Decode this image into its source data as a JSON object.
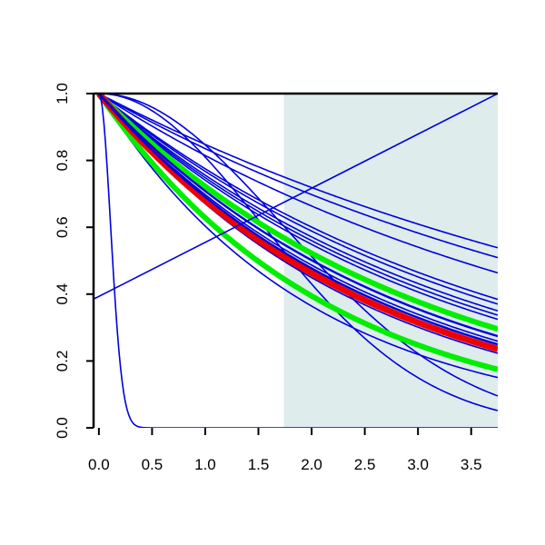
{
  "chart_data": {
    "type": "line",
    "title": "",
    "xlabel": "",
    "ylabel": "",
    "xlim": [
      -0.05,
      3.75
    ],
    "ylim": [
      0.0,
      1.0
    ],
    "x_ticks": [
      "0.0",
      "0.5",
      "1.0",
      "1.5",
      "2.0",
      "2.5",
      "3.0",
      "3.5"
    ],
    "y_ticks": [
      "0.0",
      "0.2",
      "0.4",
      "0.6",
      "0.8",
      "1.0"
    ],
    "shaded_region": {
      "x_from": 1.74,
      "x_to": 3.75,
      "color": "#deecec"
    },
    "colors": {
      "blue": "#0000dd",
      "green": "#00ee00",
      "red": "#ee0000"
    },
    "series": [
      {
        "kind": "exp",
        "k": 0.165,
        "color": "blue",
        "width": 1.6
      },
      {
        "kind": "exp",
        "k": 0.18,
        "color": "blue",
        "width": 1.6
      },
      {
        "kind": "exp",
        "k": 0.205,
        "color": "blue",
        "width": 1.6
      },
      {
        "kind": "exp",
        "k": 0.255,
        "color": "blue",
        "width": 1.6
      },
      {
        "kind": "exp",
        "k": 0.265,
        "color": "blue",
        "width": 1.6
      },
      {
        "kind": "exp",
        "k": 0.28,
        "color": "blue",
        "width": 1.6
      },
      {
        "kind": "exp",
        "k": 0.29,
        "color": "blue",
        "width": 1.6
      },
      {
        "kind": "exp",
        "k": 0.3,
        "color": "blue",
        "width": 1.6
      },
      {
        "kind": "exp",
        "k": 0.36,
        "color": "blue",
        "width": 1.6
      },
      {
        "kind": "exp",
        "k": 0.38,
        "color": "blue",
        "width": 1.6
      },
      {
        "kind": "exp",
        "k": 0.4,
        "color": "blue",
        "width": 1.6
      },
      {
        "kind": "exp",
        "k": 0.46,
        "color": "blue",
        "width": 1.6
      },
      {
        "kind": "exp",
        "k": 0.505,
        "color": "blue",
        "width": 1.6
      },
      {
        "kind": "gauss",
        "s": 1.54,
        "color": "blue",
        "width": 1.6
      },
      {
        "kind": "gauss",
        "s": 1.73,
        "color": "blue",
        "width": 1.6
      },
      {
        "kind": "exp",
        "k": 0.325,
        "color": "green",
        "width": 6
      },
      {
        "kind": "exp",
        "k": 0.465,
        "color": "green",
        "width": 6
      },
      {
        "kind": "exp",
        "k": 0.385,
        "color": "red",
        "width": 7
      },
      {
        "kind": "exp",
        "k": 0.345,
        "color": "blue",
        "width": 2.4
      },
      {
        "kind": "exp",
        "k": 0.37,
        "color": "blue",
        "width": 2.4
      },
      {
        "kind": "gauss",
        "s": 0.11,
        "color": "blue",
        "width": 1.6
      },
      {
        "kind": "linear",
        "x": [
          -0.05,
          3.75
        ],
        "y": [
          0.385,
          1.0
        ],
        "color": "blue",
        "width": 1.6
      }
    ]
  }
}
